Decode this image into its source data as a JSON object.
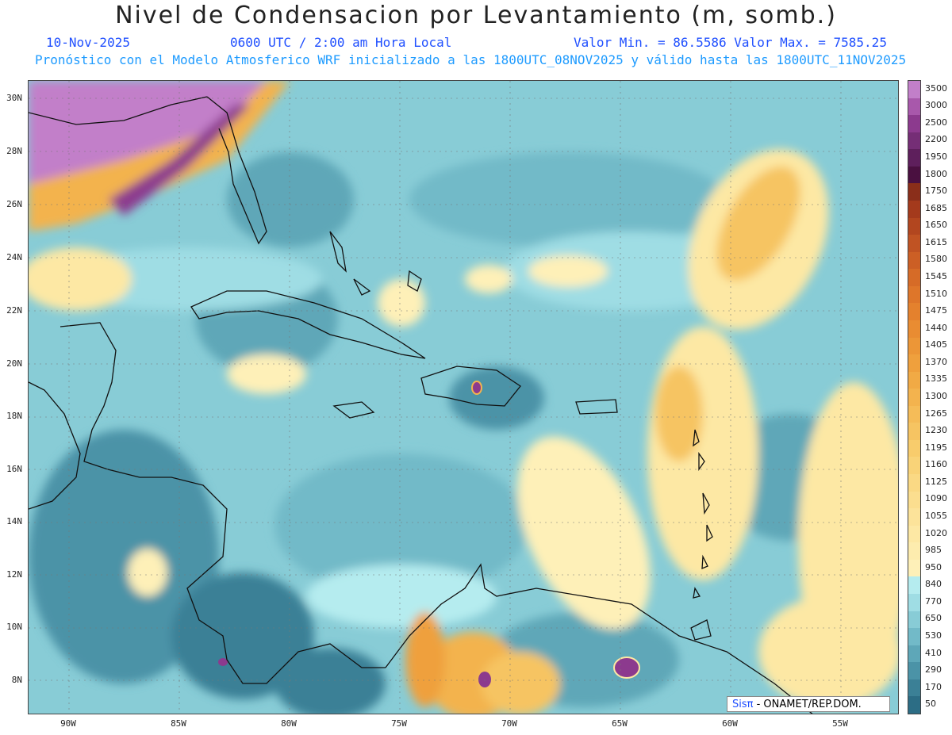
{
  "title": "Nivel de Condensacion por Levantamiento (m, somb.)",
  "date": "10-Nov-2025",
  "time": "0600 UTC / 2:00 am Hora Local",
  "minmax": "Valor Min. = 86.5586  Valor Max. = 7585.25",
  "forecast": "Pronóstico con el Modelo Atmosferico WRF inicializado a las 1800UTC_08NOV2025 y válido hasta las  1800UTC_11NOV2025",
  "credit_brand": "Sisπ",
  "credit_org": "- ONAMET/REP.DOM.",
  "lat_labels": [
    "30N",
    "28N",
    "26N",
    "24N",
    "22N",
    "20N",
    "18N",
    "16N",
    "14N",
    "12N",
    "10N",
    "8N"
  ],
  "lon_labels": [
    "90W",
    "85W",
    "80W",
    "75W",
    "70W",
    "65W",
    "60W",
    "55W"
  ],
  "colorbar": [
    {
      "label": "3500",
      "color": "#c27fc9"
    },
    {
      "label": "3000",
      "color": "#a858ab"
    },
    {
      "label": "2500",
      "color": "#8c3a8e"
    },
    {
      "label": "2200",
      "color": "#752e76"
    },
    {
      "label": "1950",
      "color": "#5e1f5c"
    },
    {
      "label": "1800",
      "color": "#4a1040"
    },
    {
      "label": "1750",
      "color": "#8a2e1a"
    },
    {
      "label": "1685",
      "color": "#a43a1c"
    },
    {
      "label": "1650",
      "color": "#b2461f"
    },
    {
      "label": "1615",
      "color": "#c05323"
    },
    {
      "label": "1580",
      "color": "#cc5f25"
    },
    {
      "label": "1545",
      "color": "#d66b27"
    },
    {
      "label": "1510",
      "color": "#de762a"
    },
    {
      "label": "1475",
      "color": "#e4812d"
    },
    {
      "label": "1440",
      "color": "#e98c32"
    },
    {
      "label": "1405",
      "color": "#ec9637"
    },
    {
      "label": "1370",
      "color": "#efa03d"
    },
    {
      "label": "1335",
      "color": "#f1aa45"
    },
    {
      "label": "1300",
      "color": "#f3b34e"
    },
    {
      "label": "1265",
      "color": "#f5bc58"
    },
    {
      "label": "1230",
      "color": "#f6c462"
    },
    {
      "label": "1195",
      "color": "#f8cc6c"
    },
    {
      "label": "1160",
      "color": "#f9d378"
    },
    {
      "label": "1125",
      "color": "#fad984"
    },
    {
      "label": "1090",
      "color": "#fbde8f"
    },
    {
      "label": "1055",
      "color": "#fce39a"
    },
    {
      "label": "1020",
      "color": "#fde8a4"
    },
    {
      "label": "985",
      "color": "#fdecae"
    },
    {
      "label": "950",
      "color": "#fef0b8"
    },
    {
      "label": "840",
      "color": "#b5ecef"
    },
    {
      "label": "770",
      "color": "#9fdde4"
    },
    {
      "label": "650",
      "color": "#88ccd6"
    },
    {
      "label": "530",
      "color": "#72bac8"
    },
    {
      "label": "410",
      "color": "#5ea7b8"
    },
    {
      "label": "290",
      "color": "#4b93a7"
    },
    {
      "label": "170",
      "color": "#3b8096"
    },
    {
      "label": "50",
      "color": "#2c6d85"
    }
  ]
}
